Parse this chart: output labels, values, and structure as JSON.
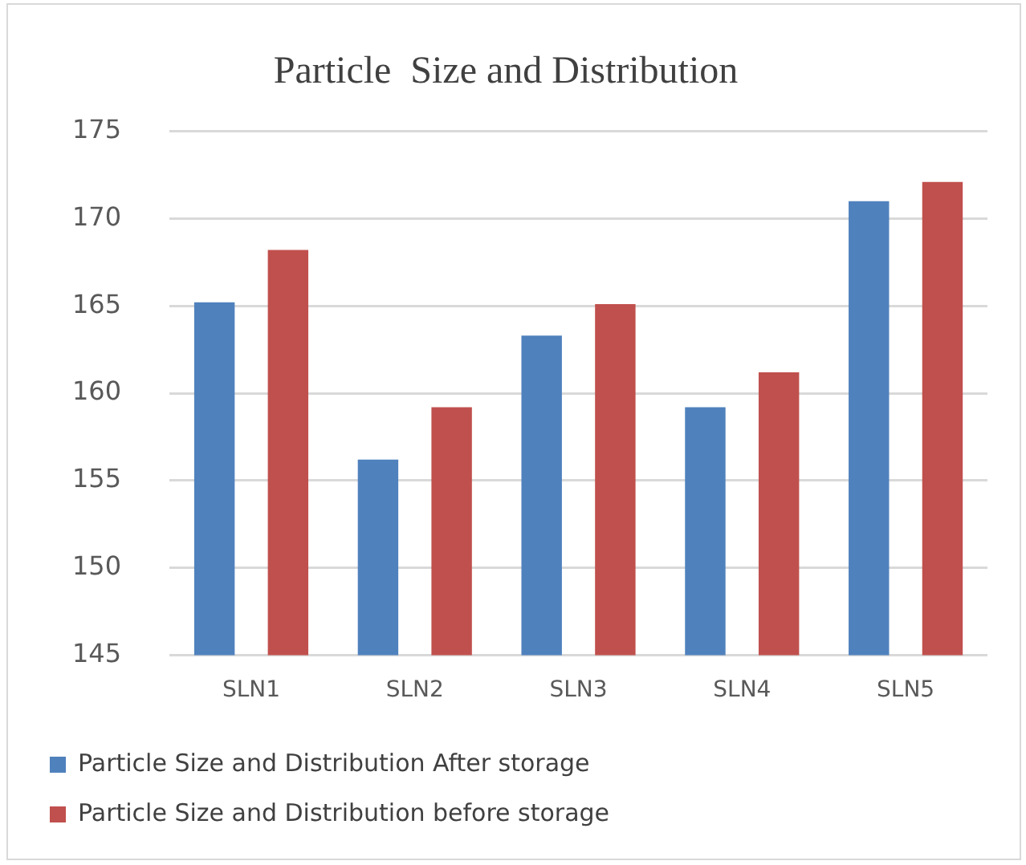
{
  "chart_data": {
    "type": "bar",
    "title": "Particle  Size and Distribution",
    "categories": [
      "SLN1",
      "SLN2",
      "SLN3",
      "SLN4",
      "SLN5"
    ],
    "series": [
      {
        "name": "Particle Size and Distribution After storage",
        "color": "#4f81bd",
        "values": [
          165.2,
          156.2,
          163.3,
          159.2,
          171.0
        ]
      },
      {
        "name": "Particle Size and Distribution before storage",
        "color": "#c0504d",
        "values": [
          168.2,
          159.2,
          165.1,
          161.2,
          172.1
        ]
      }
    ],
    "ylim": [
      145,
      175
    ],
    "yticks": [
      145,
      150,
      155,
      160,
      165,
      170,
      175
    ],
    "grid": "y",
    "legend": "bottom"
  }
}
